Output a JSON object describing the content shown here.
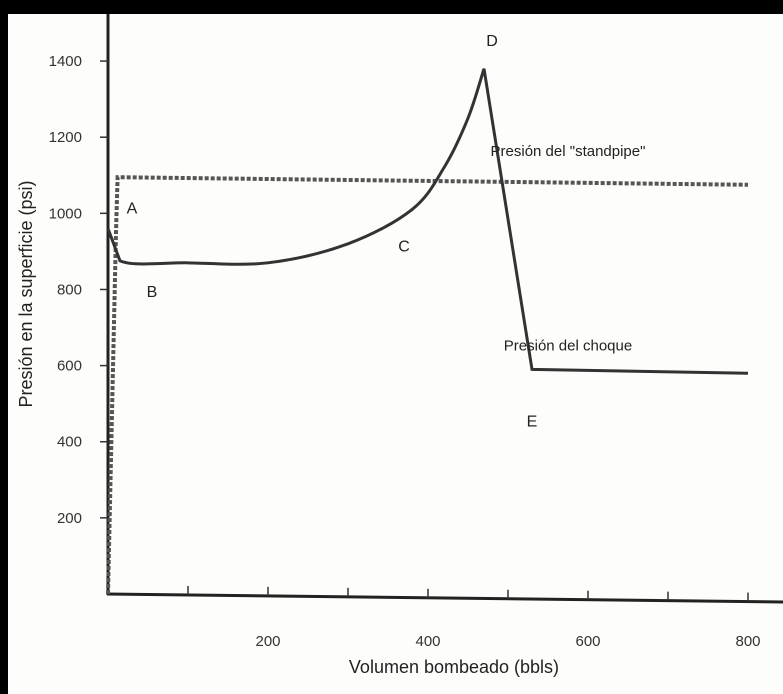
{
  "chart_data": {
    "type": "line",
    "title": "",
    "xlabel": "Volumen bombeado (bbls)",
    "ylabel": "Presión en la superficie (psi)",
    "xlim": [
      0,
      800
    ],
    "ylim": [
      0,
      1500
    ],
    "x_ticks": [
      200,
      400,
      600,
      800
    ],
    "y_ticks": [
      200,
      400,
      600,
      800,
      1000,
      1200,
      1400
    ],
    "grid": false,
    "series": [
      {
        "name": "Presión del \"standpipe\"",
        "style": "dashed",
        "color": "#555555",
        "x": [
          0,
          10,
          12,
          800
        ],
        "y": [
          0,
          950,
          1095,
          1075
        ]
      },
      {
        "name": "Presión del choque",
        "style": "solid",
        "color": "#333333",
        "x": [
          0,
          15,
          100,
          200,
          300,
          380,
          420,
          450,
          470,
          530,
          800
        ],
        "y": [
          960,
          875,
          870,
          870,
          920,
          1010,
          1120,
          1250,
          1380,
          590,
          580
        ]
      }
    ],
    "annotations": [
      {
        "text": "A",
        "x": 30,
        "y": 1000
      },
      {
        "text": "B",
        "x": 55,
        "y": 780
      },
      {
        "text": "C",
        "x": 370,
        "y": 900
      },
      {
        "text": "D",
        "x": 480,
        "y": 1440
      },
      {
        "text": "E",
        "x": 530,
        "y": 440
      }
    ]
  }
}
